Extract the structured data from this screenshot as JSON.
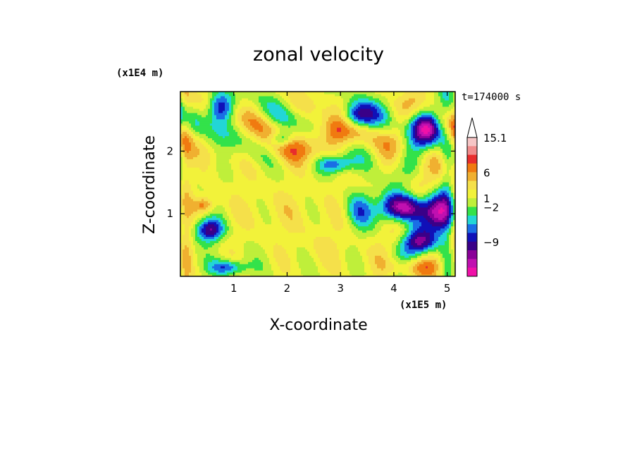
{
  "chart_data": {
    "type": "heatmap",
    "title": "zonal velocity",
    "xlabel": "X-coordinate",
    "ylabel": "Z-coordinate",
    "x_scale_label": "(x1E5 m)",
    "y_scale_label": "(x1E4 m)",
    "time_label": "t=174000 s",
    "xlim": [
      0,
      5.15
    ],
    "ylim": [
      0,
      2.95
    ],
    "x_ticks": [
      "1",
      "2",
      "3",
      "4",
      "5"
    ],
    "y_ticks": [
      "1",
      "2"
    ],
    "colorbar": {
      "labels": [
        "15.1",
        "6",
        "1",
        "−2",
        "−9"
      ],
      "bands_top_to_bottom": [
        "#f6c6c6",
        "#f08c8c",
        "#e82d2d",
        "#f07a10",
        "#f0b030",
        "#f5e04a",
        "#f2f23a",
        "#bfef3a",
        "#33e24a",
        "#22d6d6",
        "#1a6ee6",
        "#1010b8",
        "#3a0088",
        "#8a0098",
        "#c010b0",
        "#f010a8"
      ],
      "extend": "max"
    },
    "field_value_range": [
      -15,
      15.1
    ]
  }
}
